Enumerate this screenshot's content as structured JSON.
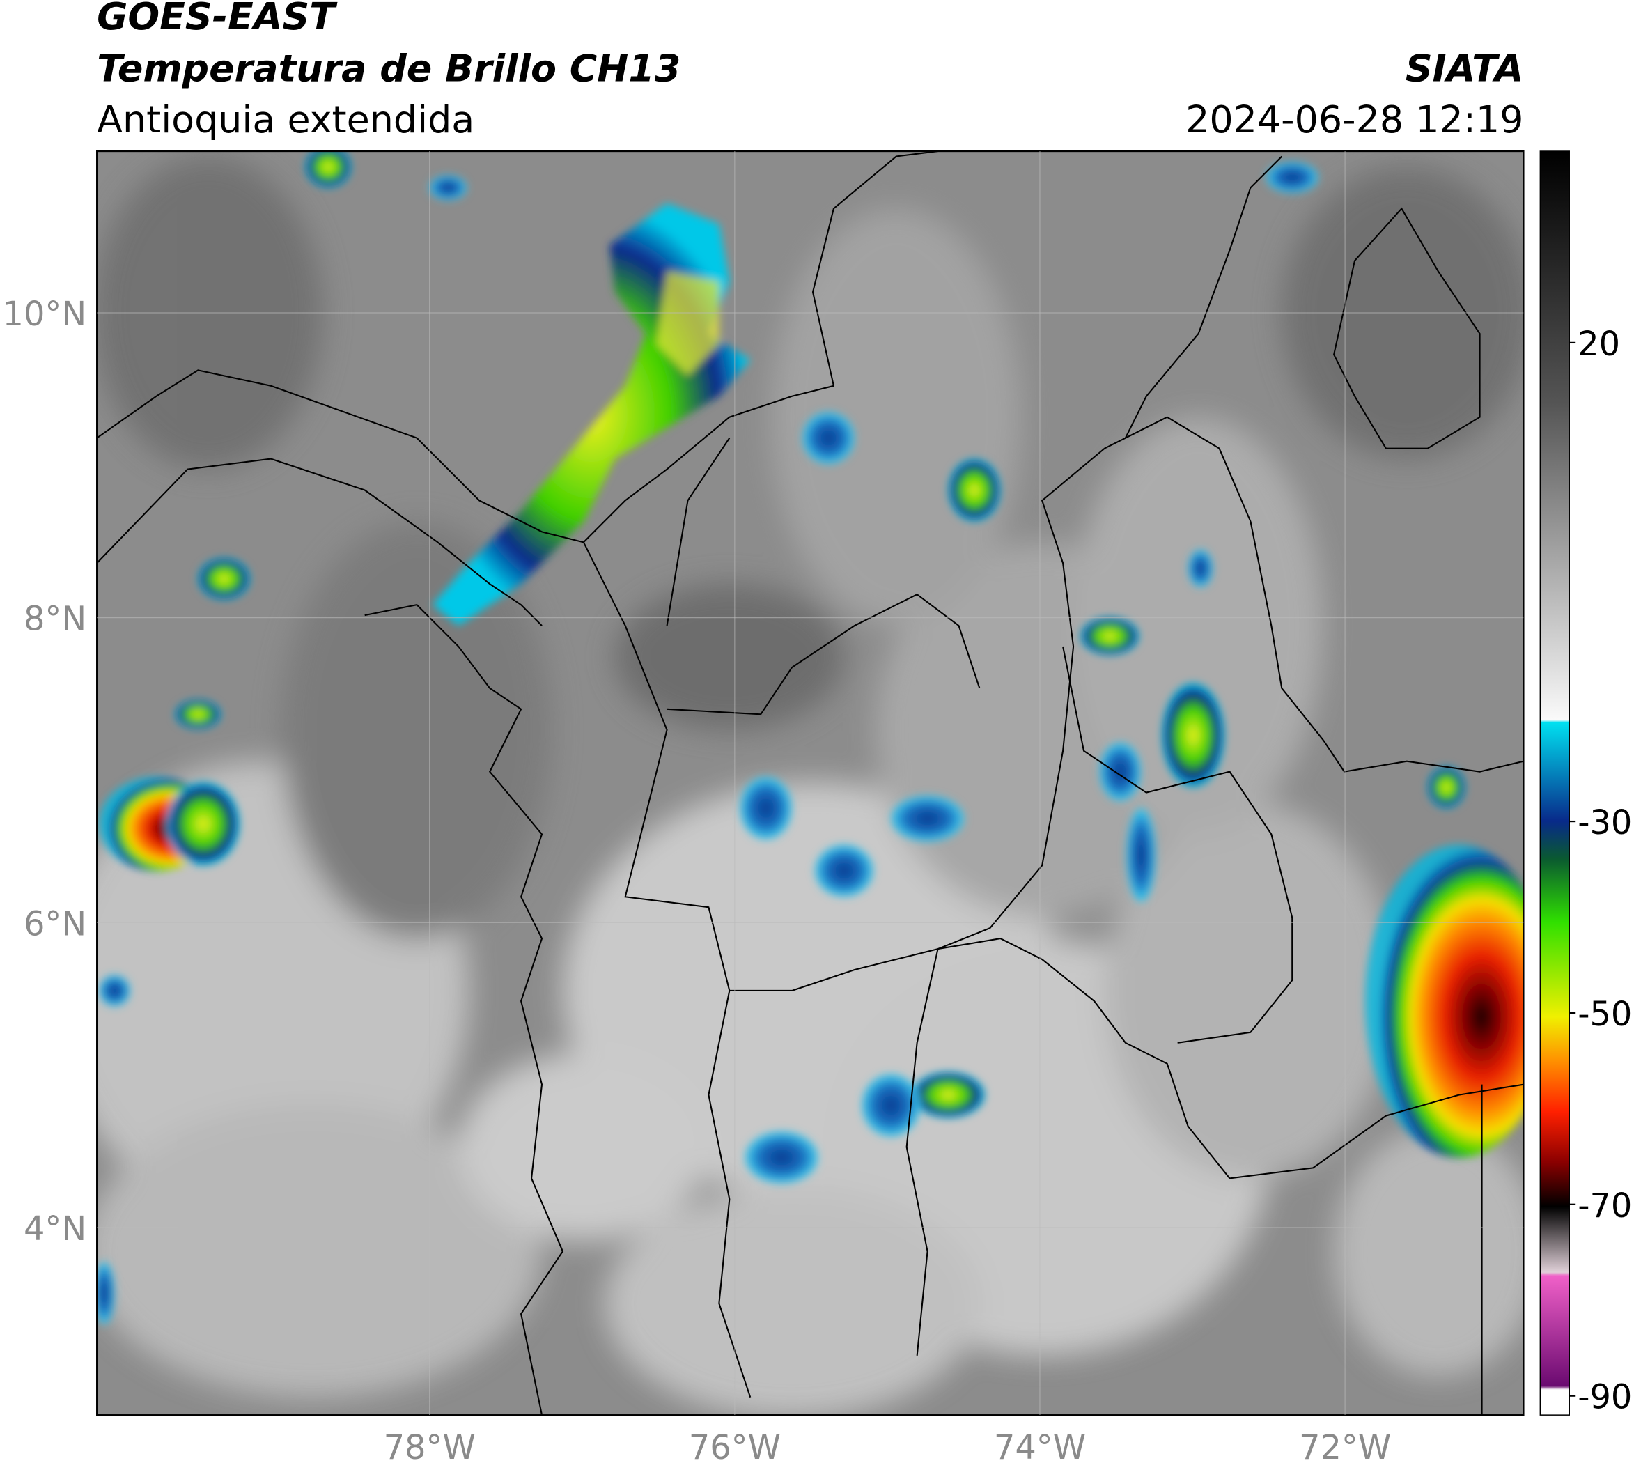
{
  "header": {
    "title": "GOES-EAST",
    "subtitle": "Temperatura de Brillo CH13",
    "region": "Antioquia extendida",
    "source": "SIATA",
    "datetime": "2024-06-28 12:19"
  },
  "map": {
    "xlim": [
      -80.18,
      -70.83
    ],
    "ylim": [
      2.77,
      11.06
    ],
    "xticks": [
      {
        "value": -78,
        "label": "78°W"
      },
      {
        "value": -76,
        "label": "76°W"
      },
      {
        "value": -74,
        "label": "74°W"
      },
      {
        "value": -72,
        "label": "72°W"
      }
    ],
    "yticks": [
      {
        "value": 10,
        "label": "10°N"
      },
      {
        "value": 8,
        "label": "8°N"
      },
      {
        "value": 6,
        "label": "6°N"
      },
      {
        "value": 4,
        "label": "4°N"
      }
    ],
    "grid": true
  },
  "colorbar": {
    "range": [
      -92,
      40
    ],
    "ticks": [
      20,
      -30,
      -50,
      -70,
      -90
    ]
  }
}
